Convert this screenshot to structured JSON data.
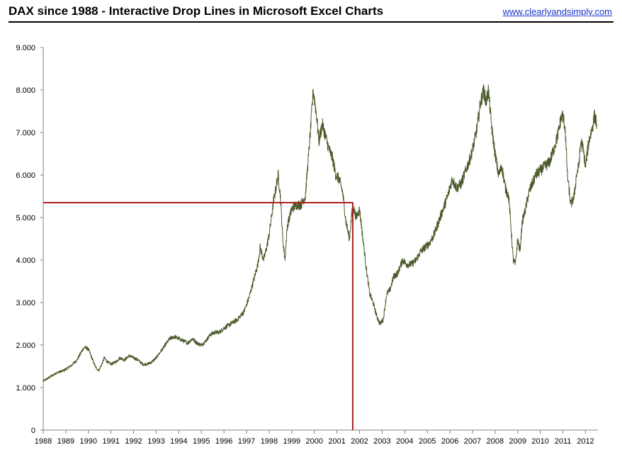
{
  "header": {
    "title": "DAX since 1988 - Interactive Drop Lines in Microsoft Excel Charts",
    "link": "www.clearlyandsimply.com"
  },
  "chart_data": {
    "type": "line",
    "title": "DAX since 1988 - Interactive Drop Lines in Microsoft Excel Charts",
    "xlabel": "",
    "ylabel": "",
    "xlim": [
      1988,
      2012.55
    ],
    "ylim": [
      0,
      9000
    ],
    "grid": false,
    "legend": "none",
    "colors": {
      "series": "#4b5a2a",
      "drop_line": "#b01e1e",
      "axis": "#808080"
    },
    "y_ticks": [
      0,
      1000,
      2000,
      3000,
      4000,
      5000,
      6000,
      7000,
      8000,
      9000
    ],
    "y_tick_labels": [
      "0",
      "1.000",
      "2.000",
      "3.000",
      "4.000",
      "5.000",
      "6.000",
      "7.000",
      "8.000",
      "9.000"
    ],
    "x_ticks": [
      1988,
      1989,
      1990,
      1991,
      1992,
      1993,
      1994,
      1995,
      1996,
      1997,
      1998,
      1999,
      2000,
      2001,
      2002,
      2003,
      2004,
      2005,
      2006,
      2007,
      2008,
      2009,
      2010,
      2011,
      2012
    ],
    "x_tick_labels": [
      "1988",
      "1989",
      "1990",
      "1991",
      "1992",
      "1993",
      "1994",
      "1995",
      "1996",
      "1997",
      "1998",
      "1999",
      "2000",
      "2001",
      "2002",
      "2003",
      "2004",
      "2005",
      "2006",
      "2007",
      "2008",
      "2009",
      "2010",
      "2011",
      "2012"
    ],
    "drop_line": {
      "x": 2001.7,
      "y": 5350
    },
    "series": [
      {
        "x": [
          1988.0,
          1988.3,
          1988.6,
          1988.9,
          1989.2,
          1989.5,
          1989.75,
          1989.85,
          1990.0,
          1990.15,
          1990.3,
          1990.45,
          1990.6,
          1990.7,
          1990.85,
          1991.0,
          1991.2,
          1991.4,
          1991.6,
          1991.8,
          1992.0,
          1992.2,
          1992.4,
          1992.6,
          1992.8,
          1993.0,
          1993.2,
          1993.4,
          1993.6,
          1993.8,
          1994.0,
          1994.2,
          1994.4,
          1994.6,
          1994.8,
          1995.0,
          1995.2,
          1995.4,
          1995.6,
          1995.8,
          1996.0,
          1996.3,
          1996.6,
          1996.9,
          1997.1,
          1997.3,
          1997.5,
          1997.6,
          1997.75,
          1997.85,
          1998.0,
          1998.2,
          1998.4,
          1998.5,
          1998.6,
          1998.7,
          1998.8,
          1998.9,
          1999.0,
          1999.2,
          1999.4,
          1999.6,
          1999.75,
          1999.85,
          1999.95,
          2000.1,
          2000.2,
          2000.35,
          2000.5,
          2000.65,
          2000.8,
          2000.95,
          2001.1,
          2001.25,
          2001.4,
          2001.55,
          2001.7,
          2001.85,
          2002.0,
          2002.15,
          2002.3,
          2002.45,
          2002.6,
          2002.75,
          2002.9,
          2003.05,
          2003.2,
          2003.35,
          2003.5,
          2003.7,
          2003.9,
          2004.1,
          2004.3,
          2004.5,
          2004.7,
          2004.9,
          2005.1,
          2005.3,
          2005.5,
          2005.7,
          2005.9,
          2006.1,
          2006.3,
          2006.5,
          2006.7,
          2006.9,
          2007.05,
          2007.2,
          2007.35,
          2007.5,
          2007.6,
          2007.7,
          2007.85,
          2008.0,
          2008.15,
          2008.3,
          2008.45,
          2008.6,
          2008.7,
          2008.8,
          2008.9,
          2009.0,
          2009.1,
          2009.2,
          2009.35,
          2009.5,
          2009.65,
          2009.8,
          2010.0,
          2010.2,
          2010.4,
          2010.6,
          2010.8,
          2010.9,
          2011.0,
          2011.1,
          2011.2,
          2011.35,
          2011.5,
          2011.6,
          2011.7,
          2011.8,
          2011.9,
          2012.0,
          2012.15,
          2012.3,
          2012.4,
          2012.5
        ],
        "values": [
          1150,
          1250,
          1350,
          1400,
          1500,
          1650,
          1900,
          1950,
          1900,
          1700,
          1500,
          1400,
          1550,
          1700,
          1600,
          1550,
          1600,
          1700,
          1650,
          1750,
          1700,
          1650,
          1550,
          1550,
          1600,
          1700,
          1850,
          2000,
          2150,
          2200,
          2150,
          2100,
          2050,
          2150,
          2050,
          2000,
          2100,
          2250,
          2300,
          2300,
          2400,
          2500,
          2600,
          2800,
          3100,
          3500,
          3900,
          4300,
          4000,
          4200,
          4600,
          5400,
          6000,
          5500,
          4500,
          4000,
          4800,
          5000,
          5200,
          5300,
          5300,
          5500,
          6500,
          7200,
          8000,
          7400,
          6800,
          7200,
          6900,
          6600,
          6400,
          6000,
          5900,
          5600,
          4900,
          4500,
          5300,
          5000,
          5200,
          4500,
          3800,
          3200,
          3000,
          2700,
          2500,
          2600,
          3200,
          3300,
          3600,
          3700,
          4000,
          3900,
          3900,
          4000,
          4200,
          4300,
          4400,
          4600,
          4900,
          5200,
          5500,
          5900,
          5700,
          5800,
          6100,
          6400,
          6700,
          7100,
          7700,
          8000,
          7700,
          8000,
          7100,
          6500,
          6000,
          6200,
          5700,
          5500,
          4800,
          4000,
          3900,
          4500,
          4200,
          4900,
          5200,
          5600,
          5800,
          6000,
          6100,
          6200,
          6300,
          6600,
          7000,
          7300,
          7400,
          7100,
          6000,
          5300,
          5500,
          6000,
          6200,
          6800,
          6600,
          6200,
          6800,
          7100,
          7400,
          7200
        ]
      }
    ]
  }
}
